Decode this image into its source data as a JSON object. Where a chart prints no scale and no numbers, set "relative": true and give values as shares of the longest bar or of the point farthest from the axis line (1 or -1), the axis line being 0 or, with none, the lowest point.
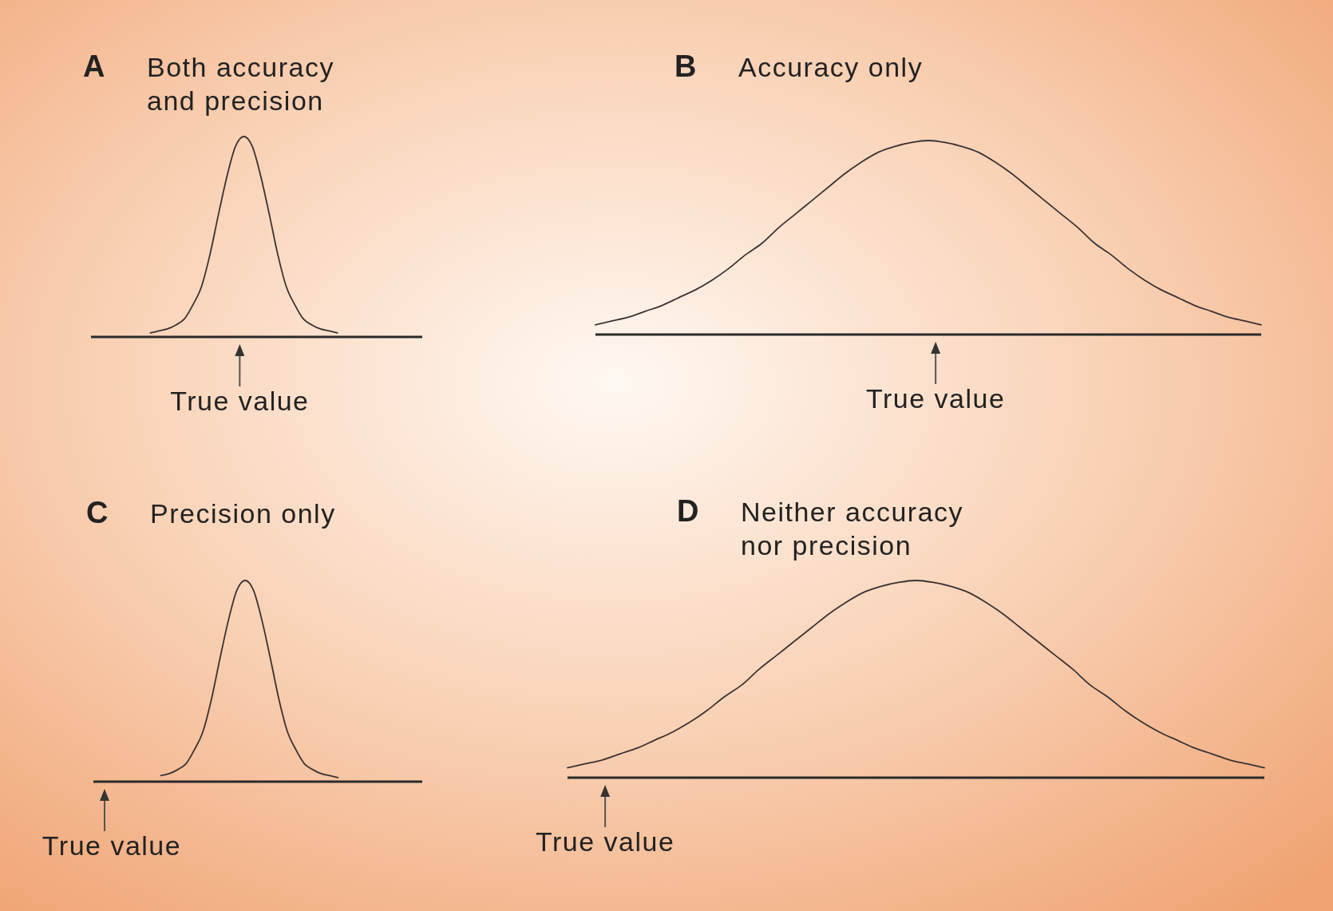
{
  "chart_data": [
    {
      "type": "line",
      "title": "A Both accuracy and precision",
      "relative": true,
      "categories": [
        null,
        null,
        null,
        null,
        null,
        null,
        null,
        null,
        null,
        null,
        null,
        null,
        null,
        null,
        null,
        null,
        null,
        null,
        null,
        null,
        null,
        null,
        null,
        null,
        null,
        null,
        null,
        null,
        null,
        null,
        null,
        null,
        null,
        null,
        null,
        null,
        null,
        null,
        null,
        null
      ],
      "series": [
        {
          "color": "#3a3333",
          "values": [
            null,
            null,
            null,
            null,
            null,
            null,
            null,
            0.02,
            0.03,
            0.04,
            0.06,
            0.09,
            0.16,
            0.25,
            0.41,
            0.61,
            0.8,
            0.95,
            1,
            0.95,
            0.8,
            0.61,
            0.41,
            0.25,
            0.16,
            0.09,
            0.06,
            0.04,
            0.03,
            0.02,
            null,
            null,
            null,
            null,
            null,
            null,
            null,
            null,
            null,
            null
          ]
        }
      ],
      "annotations": [
        "True value"
      ]
    },
    {
      "type": "line",
      "title": "B Accuracy only",
      "relative": true,
      "categories": [
        null,
        null,
        null,
        null,
        null,
        null,
        null,
        null,
        null,
        null,
        null,
        null,
        null,
        null,
        null,
        null,
        null,
        null,
        null,
        null,
        null,
        null,
        null,
        null,
        null,
        null,
        null,
        null,
        null,
        null,
        null,
        null,
        null,
        null,
        null,
        null,
        null,
        null,
        null,
        null,
        null
      ],
      "series": [
        {
          "color": "#3a3333",
          "values": [
            0.05,
            0.07,
            0.09,
            0.12,
            0.15,
            0.19,
            0.23,
            0.28,
            0.34,
            0.41,
            0.47,
            0.55,
            0.62,
            0.69,
            0.76,
            0.83,
            0.89,
            0.94,
            0.97,
            0.99,
            1,
            0.99,
            0.97,
            0.94,
            0.89,
            0.83,
            0.76,
            0.69,
            0.62,
            0.55,
            0.47,
            0.41,
            0.34,
            0.28,
            0.23,
            0.19,
            0.15,
            0.12,
            0.09,
            0.07,
            0.05
          ]
        }
      ],
      "annotations": [
        "True value"
      ]
    },
    {
      "type": "line",
      "title": "C Precision only",
      "relative": true,
      "categories": [
        null,
        null,
        null,
        null,
        null,
        null,
        null,
        null,
        null,
        null,
        null,
        null,
        null,
        null,
        null,
        null,
        null,
        null,
        null,
        null,
        null,
        null,
        null,
        null,
        null,
        null,
        null,
        null,
        null,
        null,
        null,
        null,
        null,
        null,
        null,
        null,
        null,
        null,
        null,
        null
      ],
      "series": [
        {
          "color": "#3a3333",
          "values": [
            null,
            null,
            null,
            null,
            null,
            null,
            null,
            null,
            0.03,
            0.04,
            0.06,
            0.09,
            0.16,
            0.25,
            0.41,
            0.61,
            0.8,
            0.95,
            1,
            0.95,
            0.8,
            0.61,
            0.41,
            0.25,
            0.16,
            0.09,
            0.06,
            0.04,
            0.03,
            0.02,
            null,
            null,
            null,
            null,
            null,
            null,
            null,
            null,
            null,
            null
          ]
        }
      ],
      "annotations": [
        "True value"
      ]
    },
    {
      "type": "line",
      "title": "D Neither accuracy nor precision",
      "relative": true,
      "categories": [
        null,
        null,
        null,
        null,
        null,
        null,
        null,
        null,
        null,
        null,
        null,
        null,
        null,
        null,
        null,
        null,
        null,
        null,
        null,
        null,
        null,
        null,
        null,
        null,
        null,
        null,
        null,
        null,
        null,
        null,
        null,
        null,
        null,
        null,
        null,
        null,
        null,
        null,
        null,
        null,
        null
      ],
      "series": [
        {
          "color": "#3a3333",
          "values": [
            0.05,
            0.07,
            0.09,
            0.12,
            0.15,
            0.19,
            0.23,
            0.28,
            0.34,
            0.41,
            0.47,
            0.55,
            0.62,
            0.69,
            0.76,
            0.83,
            0.89,
            0.94,
            0.97,
            0.99,
            1,
            0.99,
            0.97,
            0.94,
            0.89,
            0.83,
            0.76,
            0.69,
            0.62,
            0.55,
            0.47,
            0.41,
            0.34,
            0.28,
            0.23,
            0.19,
            0.15,
            0.12,
            0.09,
            0.07,
            0.05
          ]
        }
      ],
      "annotations": [
        "True value"
      ]
    }
  ]
}
